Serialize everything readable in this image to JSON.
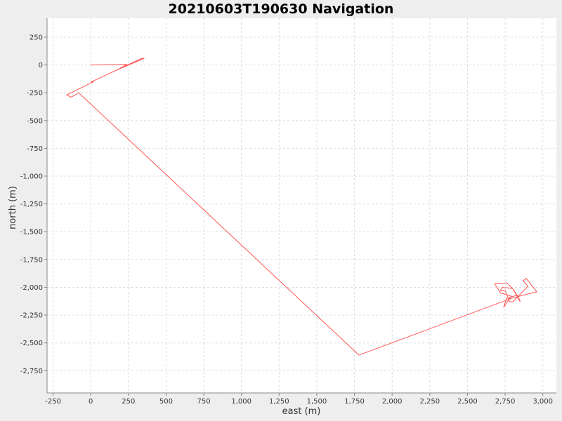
{
  "chart_data": {
    "type": "line",
    "title": "20210603T190630 Navigation",
    "xlabel": "east (m)",
    "ylabel": "north (m)",
    "xlim": [
      -290,
      3090
    ],
    "ylim": [
      -2950,
      420
    ],
    "xticks": [
      -250,
      0,
      250,
      500,
      750,
      1000,
      1250,
      1500,
      1750,
      2000,
      2250,
      2500,
      2750,
      3000
    ],
    "xtick_labels": [
      "-250",
      "0",
      "250",
      "500",
      "750",
      "1,000",
      "1,250",
      "1,500",
      "1,750",
      "2,000",
      "2,250",
      "2,500",
      "2,750",
      "3,000"
    ],
    "yticks": [
      250,
      0,
      -250,
      -500,
      -750,
      -1000,
      -1250,
      -1500,
      -1750,
      -2000,
      -2250,
      -2500,
      -2750
    ],
    "ytick_labels": [
      "250",
      "0",
      "-250",
      "-500",
      "-750",
      "-1,000",
      "-1,250",
      "-1,500",
      "-1,750",
      "-2,000",
      "-2,250",
      "-2,500",
      "-2,750"
    ],
    "grid": true,
    "color": "#ff5555",
    "series": [
      {
        "x": [
          0,
          240,
          175,
          355,
          340,
          0,
          20,
          -160,
          -130,
          -80,
          1780,
          2790,
          2870,
          2930,
          2960,
          2890,
          2870,
          2900,
          2880,
          2800,
          2780,
          2750,
          2720,
          2730,
          2800,
          2850,
          2830,
          2760,
          2740,
          2790,
          2720,
          2680,
          2760,
          2800,
          2850
        ],
        "y": [
          0,
          5,
          -45,
          60,
          60,
          -155,
          -150,
          -270,
          -290,
          -250,
          -2610,
          -2100,
          -2070,
          -2050,
          -2040,
          -1920,
          -1940,
          -1990,
          -2020,
          -2130,
          -2130,
          -2030,
          -2030,
          -2000,
          -2010,
          -2130,
          -2070,
          -2100,
          -2180,
          -2080,
          -2050,
          -1970,
          -1960,
          -2010,
          -2120
        ]
      }
    ]
  }
}
